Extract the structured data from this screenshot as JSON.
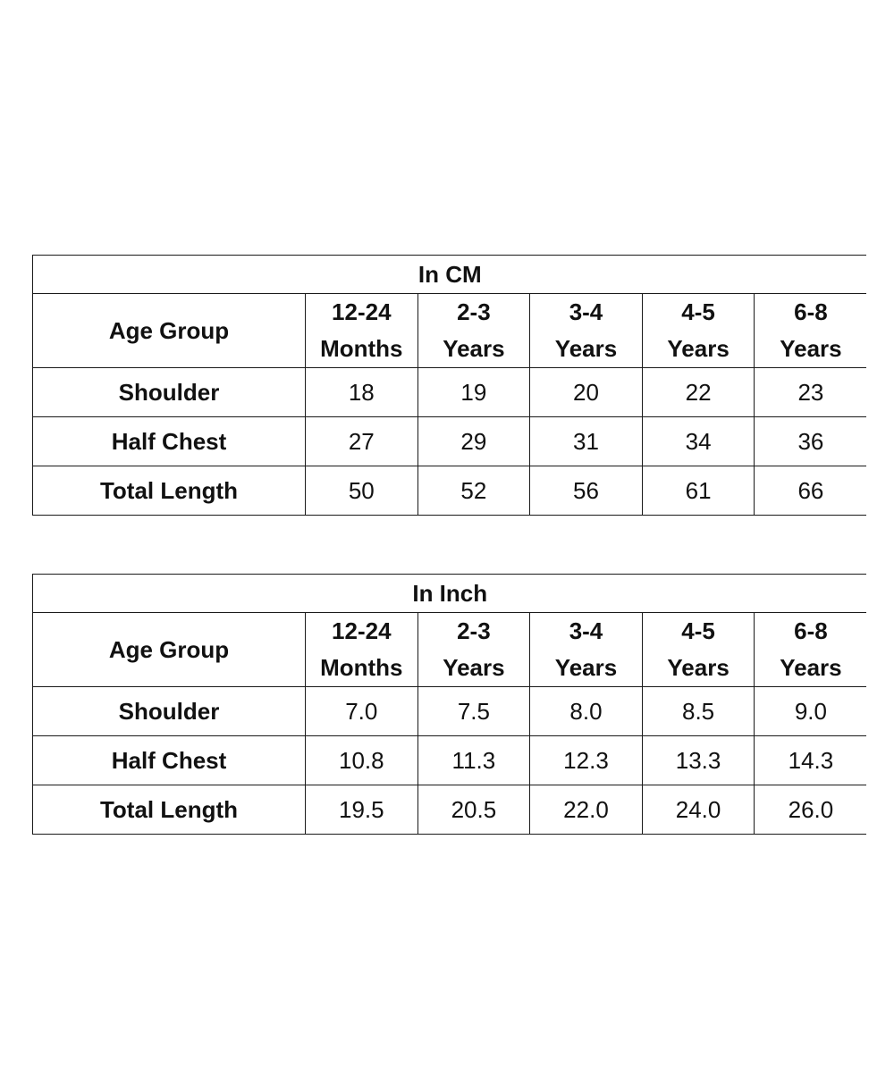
{
  "tables": [
    {
      "title": "In CM",
      "row_header_label": "Age Group",
      "columns": [
        {
          "line1": "12-24",
          "line2": "Months"
        },
        {
          "line1": "2-3",
          "line2": "Years"
        },
        {
          "line1": "3-4",
          "line2": "Years"
        },
        {
          "line1": "4-5",
          "line2": "Years"
        },
        {
          "line1": "6-8",
          "line2": "Years"
        }
      ],
      "rows": [
        {
          "label": "Shoulder",
          "values": [
            "18",
            "19",
            "20",
            "22",
            "23"
          ]
        },
        {
          "label": "Half Chest",
          "values": [
            "27",
            "29",
            "31",
            "34",
            "36"
          ]
        },
        {
          "label": "Total Length",
          "values": [
            "50",
            "52",
            "56",
            "61",
            "66"
          ]
        }
      ]
    },
    {
      "title": "In Inch",
      "row_header_label": "Age Group",
      "columns": [
        {
          "line1": "12-24",
          "line2": "Months"
        },
        {
          "line1": "2-3",
          "line2": "Years"
        },
        {
          "line1": "3-4",
          "line2": "Years"
        },
        {
          "line1": "4-5",
          "line2": "Years"
        },
        {
          "line1": "6-8",
          "line2": "Years"
        }
      ],
      "rows": [
        {
          "label": "Shoulder",
          "values": [
            "7.0",
            "7.5",
            "8.0",
            "8.5",
            "9.0"
          ]
        },
        {
          "label": "Half Chest",
          "values": [
            "10.8",
            "11.3",
            "12.3",
            "13.3",
            "14.3"
          ]
        },
        {
          "label": "Total Length",
          "values": [
            "19.5",
            "20.5",
            "22.0",
            "24.0",
            "26.0"
          ]
        }
      ]
    }
  ]
}
